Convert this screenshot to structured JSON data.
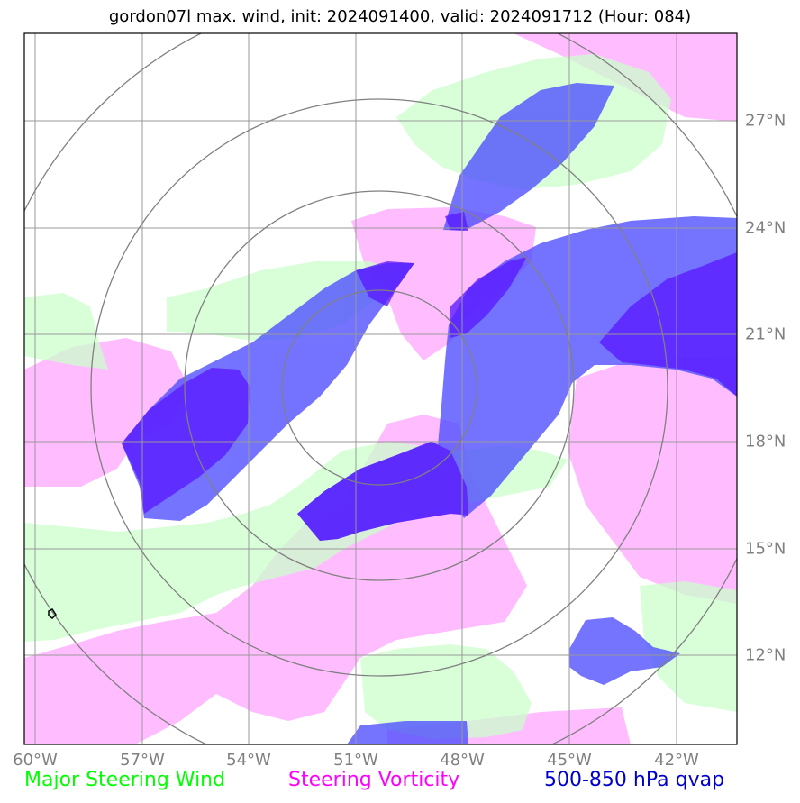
{
  "title": "gordon07l max. wind, init: 2024091400, valid: 2024091712 (Hour: 084)",
  "lon_labels": [
    "60°W",
    "57°W",
    "54°W",
    "51°W",
    "48°W",
    "45°W",
    "42°W"
  ],
  "lat_labels": [
    "27°N",
    "24°N",
    "21°N",
    "18°N",
    "15°N",
    "12°N"
  ],
  "legend": [
    {
      "label": "Major Steering Wind",
      "color": "#00ff00"
    },
    {
      "label": "Steering Vorticity",
      "color": "#ff00ff"
    },
    {
      "label": "500-850 hPa qvap",
      "color": "#0000cc"
    }
  ],
  "colors": {
    "steering_wind_fill": "#ccffcc",
    "steering_vorticity_fill": "#ff99ff",
    "qvap_fill": "#4d4dff",
    "qvap_dark_fill": "#5a1aff",
    "grid": "#999999",
    "range_rings": "#808080"
  }
}
